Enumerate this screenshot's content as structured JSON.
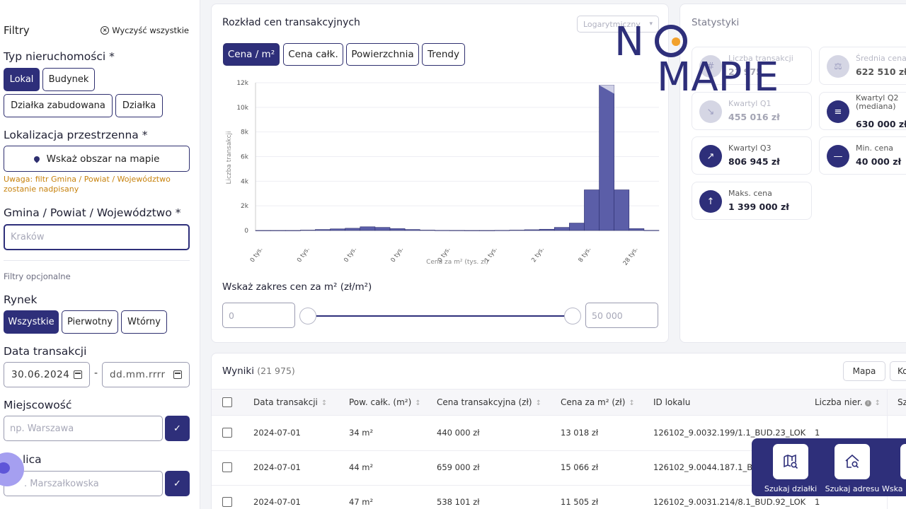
{
  "sidebar": {
    "title": "Filtry",
    "clear_all": "Wyczyść wszystkie",
    "property_type": {
      "title": "Typ nieruchomości *",
      "options": [
        "Lokal",
        "Budynek",
        "Działka zabudowana",
        "Działka"
      ]
    },
    "location": {
      "title": "Lokalizacja przestrzenna *",
      "map_button": "Wskaż obszar na mapie",
      "warning": "Uwaga: filtr Gmina / Powiat / Województwo zostanie nadpisany"
    },
    "municipality": {
      "title": "Gmina / Powiat / Województwo *",
      "placeholder": "Kraków"
    },
    "optional_label": "Filtry opcjonalne",
    "market": {
      "title": "Rynek",
      "options": [
        "Wszystkie",
        "Pierwotny",
        "Wtórny"
      ]
    },
    "date": {
      "title": "Data transakcji",
      "from": "30.06.2024",
      "to": "dd.mm.rrrr",
      "separator": "-"
    },
    "city": {
      "title": "Miejscowość",
      "placeholder": "np. Warszawa"
    },
    "street": {
      "title": "lica",
      "placeholder": ". Marszałkowska"
    }
  },
  "chart_panel": {
    "title": "Rozkład cen transakcyjnych",
    "scale_select": "Logarytmiczny",
    "tabs": [
      "Cena / m²",
      "Cena całk.",
      "Powierzchnia",
      "Trendy"
    ],
    "range_title": "Wskaż zakres cen za m² (zł/m²)",
    "range_min": "0",
    "range_max": "50 000"
  },
  "chart_data": {
    "type": "bar",
    "xlabel": "Cena za m² (tys. zł)",
    "ylabel": "Liczba transakcji",
    "ylim": [
      0,
      12000
    ],
    "y_ticks": [
      "0",
      "2k",
      "4k",
      "6k",
      "8k",
      "10k",
      "12k"
    ],
    "x_tick_labels": [
      "0 tys.",
      "0 tys.",
      "0 tys.",
      "0 tys.",
      "0 tys.",
      "1 tys.",
      "2 tys.",
      "8 tys.",
      "28 tys."
    ],
    "values": [
      0,
      0,
      0,
      30,
      80,
      130,
      180,
      300,
      250,
      150,
      80,
      30,
      10,
      5,
      0,
      0,
      10,
      30,
      60,
      100,
      250,
      600,
      3300,
      11800,
      3300,
      150,
      10
    ],
    "bar_color": "#5b5ea8",
    "highlight_color": "#cfd0e6"
  },
  "stats": {
    "title": "Statystyki",
    "cards": [
      {
        "label": "Liczba transakcji",
        "value": "21 975",
        "icon": "#"
      },
      {
        "label": "Średnia cena",
        "value": "622 510 zł",
        "icon": "⚖"
      },
      {
        "label": "Kwartyl Q1",
        "value": "455 016 zł",
        "icon": "↘"
      },
      {
        "label": "Kwartyl Q2 (mediana)",
        "value": "630 000 zł",
        "icon": "≡"
      },
      {
        "label": "Kwartyl Q3",
        "value": "806 945 zł",
        "icon": "↗"
      },
      {
        "label": "Min. cena",
        "value": "40 000 zł",
        "icon": "—"
      },
      {
        "label": "Maks. cena",
        "value": "1 399 000 zł",
        "icon": "↑"
      }
    ]
  },
  "logo": {
    "line1_left": "N",
    "line2": "MAPIE",
    "accent": "#f2a12c"
  },
  "results": {
    "title": "Wyniki",
    "count": "(21 975)",
    "map_button": "Mapa",
    "other_button": "Ko",
    "columns": [
      "Data transakcji",
      "Pow. całk. (m²)",
      "Cena transakcyjna (zł)",
      "Cena za m² (zł)",
      "ID lokalu",
      "Liczba nier.",
      "Sz"
    ],
    "rows": [
      {
        "date": "2024-07-01",
        "area": "34 m²",
        "price": "440 000 zł",
        "price_m2": "13 018 zł",
        "id": "126102_9.0032.199/1.1_BUD.23_LOK",
        "count": "1"
      },
      {
        "date": "2024-07-01",
        "area": "44 m²",
        "price": "659 000 zł",
        "price_m2": "15 066 zł",
        "id": "126102_9.0044.187.1_BUD.14",
        "count": ""
      },
      {
        "date": "2024-07-01",
        "area": "47 m²",
        "price": "538 101 zł",
        "price_m2": "11 505 zł",
        "id": "126102_9.0031.214/8.1_BUD.92_LOK",
        "count": "1"
      }
    ]
  },
  "float_toolbar": {
    "items": [
      "Szukaj działki",
      "Szukaj adresu",
      "Wska"
    ]
  }
}
